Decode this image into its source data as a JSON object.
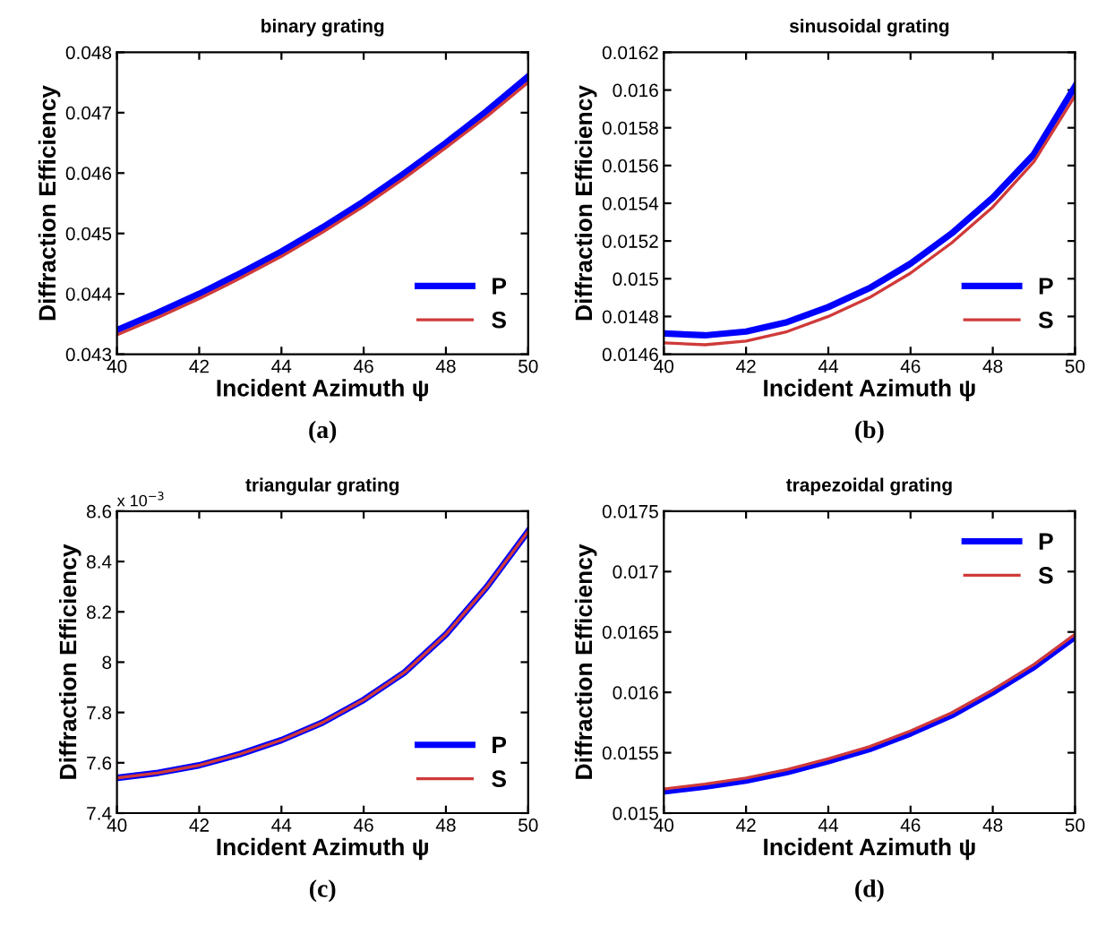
{
  "chart_data": [
    {
      "type": "line",
      "title": "binary grating",
      "xlabel": "Incident Azimuth ψ",
      "ylabel": "Diffraction Efficiency",
      "annotations": [
        "(a)"
      ],
      "x": [
        40,
        41,
        42,
        43,
        44,
        45,
        46,
        47,
        48,
        49,
        50
      ],
      "series": [
        {
          "name": "P",
          "color": "#0000ff",
          "values": [
            0.0434,
            0.04369,
            0.044,
            0.04434,
            0.0447,
            0.0451,
            0.04553,
            0.046,
            0.0465,
            0.04703,
            0.0476
          ]
        },
        {
          "name": "S",
          "color": "#d03a3a",
          "values": [
            0.04332,
            0.04361,
            0.04392,
            0.04426,
            0.04462,
            0.04502,
            0.04545,
            0.04592,
            0.04642,
            0.04694,
            0.0475
          ]
        }
      ],
      "xlim": [
        40,
        50
      ],
      "xticks": [
        40,
        42,
        44,
        46,
        48,
        50
      ],
      "ylim": [
        0.043,
        0.048
      ],
      "yticks": [
        0.043,
        0.044,
        0.045,
        0.046,
        0.047,
        0.048
      ],
      "legend": "lower right",
      "grid": false,
      "line_style": "solid",
      "marker": "none"
    },
    {
      "type": "line",
      "title": "sinusoidal grating",
      "xlabel": "Incident Azimuth ψ",
      "ylabel": "Diffraction Efficiency",
      "annotations": [
        "(b)"
      ],
      "x": [
        40,
        41,
        42,
        43,
        44,
        45,
        46,
        47,
        48,
        49,
        50
      ],
      "series": [
        {
          "name": "P",
          "color": "#0000ff",
          "values": [
            0.01471,
            0.0147,
            0.01472,
            0.01477,
            0.01485,
            0.01495,
            0.01508,
            0.01524,
            0.01543,
            0.01566,
            0.01602
          ]
        },
        {
          "name": "S",
          "color": "#d03a3a",
          "values": [
            0.01466,
            0.01465,
            0.01467,
            0.01472,
            0.0148,
            0.0149,
            0.01503,
            0.01519,
            0.01538,
            0.01562,
            0.01597
          ]
        }
      ],
      "xlim": [
        40,
        50
      ],
      "xticks": [
        40,
        42,
        44,
        46,
        48,
        50
      ],
      "ylim": [
        0.0146,
        0.0162
      ],
      "yticks": [
        0.0146,
        0.0148,
        0.015,
        0.0152,
        0.0154,
        0.0156,
        0.0158,
        0.016,
        0.0162
      ],
      "legend": "lower right",
      "grid": false,
      "line_style": "solid",
      "marker": "none"
    },
    {
      "type": "line",
      "title": "triangular grating",
      "xlabel": "Incident Azimuth ψ",
      "ylabel": "Diffraction Efficiency",
      "annotations": [
        "x 10$^{−3}$",
        "(c)"
      ],
      "x": [
        40,
        41,
        42,
        43,
        44,
        45,
        46,
        47,
        48,
        49,
        50
      ],
      "series": [
        {
          "name": "P",
          "color": "#0000ff",
          "values": [
            7.54,
            7.56,
            7.59,
            7.635,
            7.69,
            7.76,
            7.85,
            7.96,
            8.11,
            8.3,
            8.52
          ]
        },
        {
          "name": "S",
          "color": "#d03a3a",
          "values": [
            7.54,
            7.56,
            7.59,
            7.635,
            7.69,
            7.76,
            7.85,
            7.96,
            8.11,
            8.3,
            8.52
          ]
        }
      ],
      "xlim": [
        40,
        50
      ],
      "xticks": [
        40,
        42,
        44,
        46,
        48,
        50
      ],
      "ylim": [
        7.4,
        8.6
      ],
      "yticks": [
        7.4,
        7.6,
        7.8,
        8,
        8.2,
        8.4,
        8.6
      ],
      "legend": "lower right",
      "grid": false,
      "line_style": "solid",
      "marker": "none"
    },
    {
      "type": "line",
      "title": "trapezoidal grating",
      "xlabel": "Incident Azimuth ψ",
      "ylabel": "Diffraction Efficiency",
      "annotations": [
        "(d)"
      ],
      "x": [
        40,
        41,
        42,
        43,
        44,
        45,
        46,
        47,
        48,
        49,
        50
      ],
      "series": [
        {
          "name": "P",
          "color": "#0000ff",
          "values": [
            0.01518,
            0.01522,
            0.01527,
            0.01534,
            0.01543,
            0.01553,
            0.01566,
            0.01581,
            0.016,
            0.01621,
            0.01646
          ]
        },
        {
          "name": "S",
          "color": "#d03a3a",
          "values": [
            0.0152,
            0.01524,
            0.01529,
            0.01536,
            0.01545,
            0.01555,
            0.01568,
            0.01583,
            0.01602,
            0.01623,
            0.01648
          ]
        }
      ],
      "xlim": [
        40,
        50
      ],
      "xticks": [
        40,
        42,
        44,
        46,
        48,
        50
      ],
      "ylim": [
        0.015,
        0.0175
      ],
      "yticks": [
        0.015,
        0.0155,
        0.016,
        0.0165,
        0.017,
        0.0175
      ],
      "legend": "upper right",
      "grid": false,
      "line_style": "solid",
      "marker": "none"
    }
  ]
}
